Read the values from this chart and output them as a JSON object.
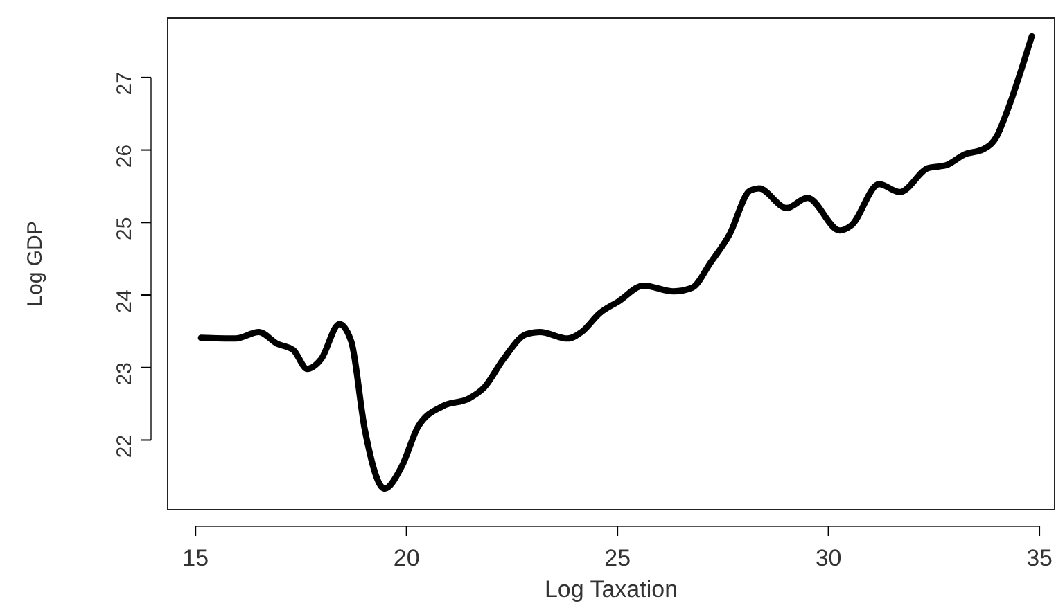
{
  "chart_data": {
    "type": "line",
    "xlabel": "Log Taxation",
    "ylabel": "Log GDP",
    "xlim": [
      14.34,
      35.36
    ],
    "ylim": [
      21.04,
      27.82
    ],
    "xticks": [
      15,
      20,
      25,
      30,
      35
    ],
    "yticks": [
      22,
      23,
      24,
      25,
      26,
      27
    ],
    "grid": false,
    "marker": "none",
    "line_style": "solid",
    "series": [
      {
        "color": "#000000",
        "x": [
          15.13,
          15.95,
          16.5,
          16.93,
          17.32,
          17.65,
          17.97,
          18.41,
          18.69,
          19.01,
          19.48,
          19.89,
          20.28,
          20.87,
          21.47,
          21.85,
          22.29,
          22.84,
          23.16,
          23.82,
          24.15,
          24.58,
          25.02,
          25.62,
          26.33,
          26.77,
          27.21,
          27.65,
          28.14,
          28.35,
          29.01,
          29.5,
          30.27,
          30.54,
          31.2,
          31.69,
          32.36,
          32.79,
          33.23,
          33.67,
          34.0,
          34.16,
          34.82
        ],
        "values": [
          23.41,
          23.4,
          23.49,
          23.33,
          23.24,
          22.98,
          23.11,
          23.6,
          23.36,
          22.15,
          21.33,
          21.64,
          22.19,
          22.47,
          22.57,
          22.73,
          23.11,
          23.46,
          23.49,
          23.4,
          23.49,
          23.75,
          23.91,
          24.13,
          24.05,
          24.1,
          24.45,
          24.83,
          25.44,
          25.47,
          25.2,
          25.34,
          24.89,
          24.96,
          25.53,
          25.42,
          25.75,
          25.79,
          25.94,
          26.01,
          26.2,
          26.42,
          27.57
        ]
      }
    ]
  }
}
